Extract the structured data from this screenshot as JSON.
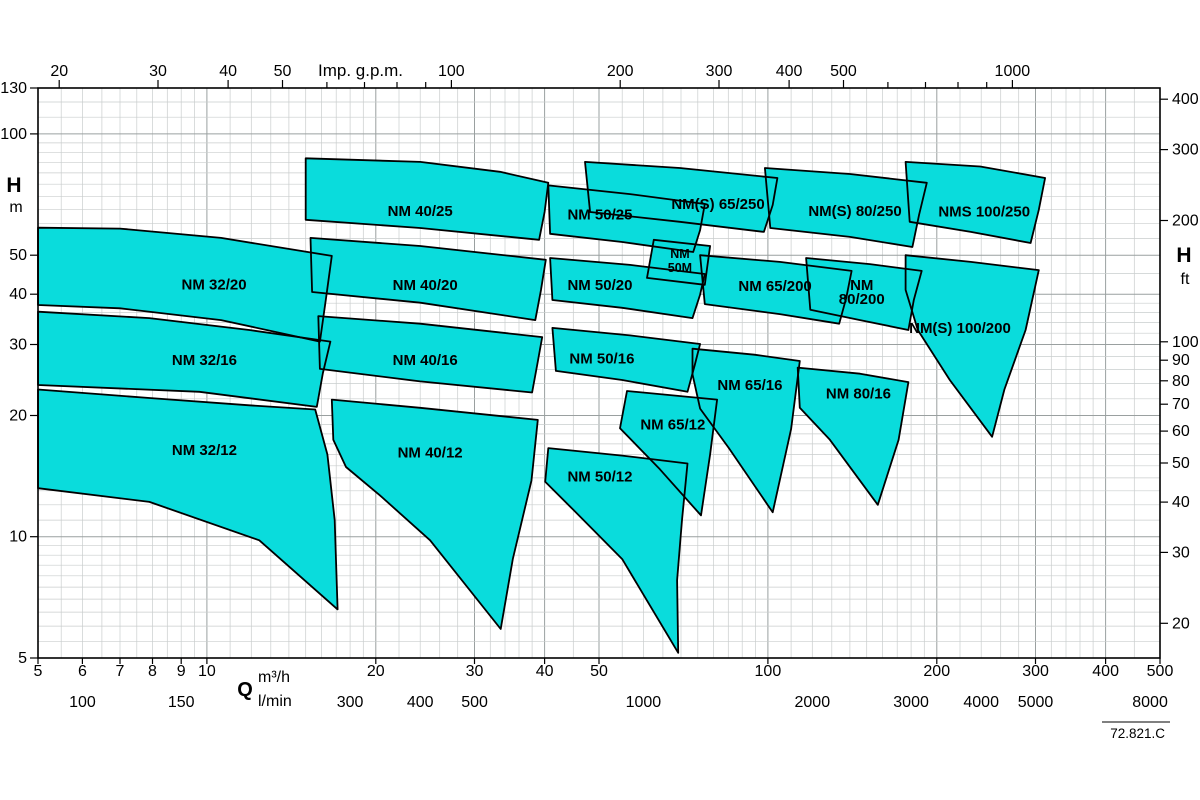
{
  "meta": {
    "doc_code": "72.821.C"
  },
  "colors": {
    "background": "#ffffff",
    "region_fill": "#0adcdc",
    "region_stroke": "#000000",
    "grid_minor": "#c9cdcd",
    "grid_major": "#9aa0a0",
    "axis": "#000000"
  },
  "axes": {
    "top": {
      "title": "Imp. g.p.m.",
      "ticks": [
        20,
        30,
        40,
        50,
        100,
        200,
        300,
        400,
        500,
        1000
      ]
    },
    "bottom": {
      "symbol": "Q",
      "unit_primary": "m³/h",
      "unit_secondary": "l/min",
      "m3h_ticks": [
        5,
        6,
        7,
        8,
        9,
        10,
        20,
        30,
        40,
        50,
        100,
        200,
        300,
        400,
        500
      ],
      "lmin_ticks": [
        100,
        150,
        300,
        400,
        500,
        1000,
        2000,
        3000,
        4000,
        5000,
        8000
      ]
    },
    "left": {
      "title": "H",
      "unit": "m",
      "ticks": [
        130,
        100,
        50,
        40,
        30,
        20,
        10,
        5
      ]
    },
    "right": {
      "title": "H",
      "unit": "ft",
      "ticks": [
        400,
        300,
        200,
        100,
        90,
        80,
        70,
        60,
        50,
        40,
        30,
        20
      ]
    }
  },
  "chart_data": {
    "type": "area",
    "title": "",
    "x_axis": {
      "label": "Q",
      "units": [
        "m³/h",
        "l/min",
        "Imp. g.p.m."
      ],
      "scale": "log",
      "min": 5,
      "max": 500,
      "major_gridlines": [
        5,
        10,
        20,
        30,
        40,
        50,
        100,
        200,
        300,
        400,
        500
      ]
    },
    "y_axis": {
      "label": "H",
      "units": [
        "m",
        "ft"
      ],
      "scale": "log",
      "min": 5,
      "max": 130,
      "major_gridlines": [
        5,
        10,
        20,
        30,
        40,
        50,
        100
      ]
    },
    "regions": [
      {
        "id": "nm-32-20",
        "label_lines": [
          "NM 32/20"
        ],
        "label_pos": [
          10.3,
          42.3
        ],
        "points_q_h": [
          [
            5,
            58.5
          ],
          [
            7,
            58.2
          ],
          [
            10.6,
            55.2
          ],
          [
            16.7,
            49.8
          ],
          [
            16.3,
            38.9
          ],
          [
            15.9,
            30.5
          ],
          [
            10.6,
            34.5
          ],
          [
            7,
            36.9
          ],
          [
            5,
            37.6
          ]
        ]
      },
      {
        "id": "nm-32-16",
        "label_lines": [
          "NM 32/16"
        ],
        "label_pos": [
          9.9,
          27.5
        ],
        "points_q_h": [
          [
            5,
            36.2
          ],
          [
            7.9,
            34.9
          ],
          [
            11.9,
            32.6
          ],
          [
            16.6,
            30.5
          ],
          [
            16.1,
            25.5
          ],
          [
            15.7,
            21
          ],
          [
            9.7,
            22.9
          ],
          [
            5,
            23.8
          ]
        ]
      },
      {
        "id": "nm-32-12",
        "label_lines": [
          "NM 32/12"
        ],
        "label_pos": [
          9.9,
          16.4
        ],
        "points_q_h": [
          [
            5,
            23.2
          ],
          [
            7.9,
            22.1
          ],
          [
            11.9,
            21.2
          ],
          [
            15.6,
            20.7
          ],
          [
            16.4,
            16
          ],
          [
            16.9,
            11
          ],
          [
            17.1,
            6.6
          ],
          [
            12.4,
            9.8
          ],
          [
            7.9,
            12.2
          ],
          [
            5,
            13.2
          ]
        ]
      },
      {
        "id": "nm-40-25",
        "label_lines": [
          "NM 40/25"
        ],
        "label_pos": [
          24,
          64.4
        ],
        "points_q_h": [
          [
            15,
            87
          ],
          [
            24,
            85.2
          ],
          [
            33.3,
            80.5
          ],
          [
            40.6,
            75.6
          ],
          [
            40,
            64
          ],
          [
            39.1,
            54.6
          ],
          [
            24,
            58.4
          ],
          [
            15,
            61.2
          ]
        ]
      },
      {
        "id": "nm-40-20",
        "label_lines": [
          "NM 40/20"
        ],
        "label_pos": [
          24.5,
          42.2
        ],
        "points_q_h": [
          [
            15.3,
            55.2
          ],
          [
            24,
            52.7
          ],
          [
            40.2,
            48.7
          ],
          [
            39.4,
            41
          ],
          [
            38.5,
            34.5
          ],
          [
            24,
            38.1
          ],
          [
            15.4,
            40.5
          ]
        ]
      },
      {
        "id": "nm-40-16",
        "label_lines": [
          "NM 40/16"
        ],
        "label_pos": [
          24.5,
          27.5
        ],
        "points_q_h": [
          [
            15.8,
            35.3
          ],
          [
            24,
            33.8
          ],
          [
            39.6,
            31.3
          ],
          [
            38.8,
            26.7
          ],
          [
            38,
            22.8
          ],
          [
            24,
            24.3
          ],
          [
            15.9,
            26.1
          ]
        ]
      },
      {
        "id": "nm-40-12",
        "label_lines": [
          "NM 40/12"
        ],
        "label_pos": [
          25,
          16.2
        ],
        "points_q_h": [
          [
            16.7,
            21.9
          ],
          [
            24,
            20.9
          ],
          [
            38.9,
            19.5
          ],
          [
            37.9,
            13.8
          ],
          [
            35.1,
            8.8
          ],
          [
            33.4,
            5.9
          ],
          [
            25,
            9.8
          ],
          [
            20.3,
            12.7
          ],
          [
            17.7,
            14.9
          ],
          [
            16.8,
            17.4
          ]
        ]
      },
      {
        "id": "nm-50-25",
        "label_lines": [
          "NM 50/25"
        ],
        "label_pos": [
          50.2,
          63
        ],
        "points_q_h": [
          [
            40.6,
            74.5
          ],
          [
            56.8,
            70.9
          ],
          [
            77.2,
            67
          ],
          [
            75.7,
            57.7
          ],
          [
            73.6,
            50.9
          ],
          [
            55,
            53.9
          ],
          [
            40.9,
            56.5
          ]
        ]
      },
      {
        "id": "nm-50m",
        "label_lines": [
          "NM",
          "50M"
        ],
        "small_label": true,
        "label_pos": [
          69.7,
          48.7
        ],
        "points_q_h": [
          [
            62.6,
            54.6
          ],
          [
            78.9,
            52.7
          ],
          [
            77.2,
            42.2
          ],
          [
            60.9,
            43.9
          ]
        ]
      },
      {
        "id": "nm-50-20",
        "label_lines": [
          "NM 50/20"
        ],
        "label_pos": [
          50.2,
          42.2
        ],
        "points_q_h": [
          [
            40.9,
            49.2
          ],
          [
            56.8,
            47.3
          ],
          [
            77.2,
            44.9
          ],
          [
            75.7,
            39.9
          ],
          [
            73.4,
            34.9
          ],
          [
            55,
            37
          ],
          [
            41.3,
            38.7
          ]
        ]
      },
      {
        "id": "nm-50-16",
        "label_lines": [
          "NM 50/16"
        ],
        "label_pos": [
          50.6,
          27.7
        ],
        "points_q_h": [
          [
            41.3,
            33
          ],
          [
            56.8,
            31.6
          ],
          [
            75.7,
            30.1
          ],
          [
            74.1,
            26.7
          ],
          [
            71.9,
            22.9
          ],
          [
            55,
            24.5
          ],
          [
            41.9,
            25.8
          ]
        ]
      },
      {
        "id": "nm-50-12",
        "label_lines": [
          "NM 50/12"
        ],
        "label_pos": [
          50.2,
          14.1
        ],
        "points_q_h": [
          [
            40.6,
            16.6
          ],
          [
            55,
            15.9
          ],
          [
            71.9,
            15.2
          ],
          [
            70.3,
            11
          ],
          [
            68.9,
            7.8
          ],
          [
            69.2,
            5.15
          ],
          [
            55,
            8.8
          ],
          [
            44.9,
            11.7
          ],
          [
            40.1,
            13.7
          ]
        ]
      },
      {
        "id": "nms-65-250",
        "label_lines": [
          "NM(S) 65/250"
        ],
        "label_pos": [
          81.5,
          67
        ],
        "points_q_h": [
          [
            47.2,
            85.2
          ],
          [
            69.7,
            82.3
          ],
          [
            104,
            77.7
          ],
          [
            102,
            66.6
          ],
          [
            98.4,
            57.1
          ],
          [
            69.7,
            60.5
          ],
          [
            48.2,
            64
          ]
        ]
      },
      {
        "id": "nm-65-200",
        "label_lines": [
          "NM 65/200"
        ],
        "label_pos": [
          103,
          41.9
        ],
        "points_q_h": [
          [
            75.7,
            50
          ],
          [
            105,
            48.1
          ],
          [
            141,
            45.7
          ],
          [
            138,
            39.2
          ],
          [
            134,
            33.8
          ],
          [
            105,
            35.7
          ],
          [
            77.2,
            37.8
          ]
        ]
      },
      {
        "id": "nm-65-16",
        "label_lines": [
          "NM 65/16"
        ],
        "label_pos": [
          92.9,
          23.8
        ],
        "points_q_h": [
          [
            73.4,
            29.3
          ],
          [
            94.6,
            28.3
          ],
          [
            114,
            27.3
          ],
          [
            110,
            18.5
          ],
          [
            102,
            11.5
          ],
          [
            85.2,
            16.6
          ],
          [
            75.7,
            20.8
          ],
          [
            73.4,
            25.3
          ]
        ]
      },
      {
        "id": "nm-65-12",
        "label_lines": [
          "NM 65/12"
        ],
        "label_pos": [
          67.7,
          19
        ],
        "points_q_h": [
          [
            56.1,
            23
          ],
          [
            81.2,
            21.9
          ],
          [
            78.9,
            16
          ],
          [
            76,
            11.3
          ],
          [
            64.2,
            14.7
          ],
          [
            54.5,
            18.6
          ]
        ]
      },
      {
        "id": "nms-80-250",
        "label_lines": [
          "NM(S) 80/250"
        ],
        "label_pos": [
          143,
          64.4
        ],
        "points_q_h": [
          [
            98.8,
            82.3
          ],
          [
            140,
            79.5
          ],
          [
            192,
            75.6
          ],
          [
            186,
            63
          ],
          [
            181,
            52.4
          ],
          [
            140,
            55.5
          ],
          [
            101,
            58.4
          ]
        ]
      },
      {
        "id": "nm-80-200",
        "label_lines": [
          "NM",
          "80/200"
        ],
        "label_pos": [
          147,
          40.5
        ],
        "points_q_h": [
          [
            117,
            49.2
          ],
          [
            152,
            47.5
          ],
          [
            188,
            45.7
          ],
          [
            182,
            38.7
          ],
          [
            178,
            32.6
          ],
          [
            146,
            34.5
          ],
          [
            119,
            36.6
          ]
        ]
      },
      {
        "id": "nm-80-16",
        "label_lines": [
          "NM 80/16"
        ],
        "label_pos": [
          145,
          22.7
        ],
        "points_q_h": [
          [
            113,
            26.3
          ],
          [
            146,
            25.4
          ],
          [
            178,
            24.2
          ],
          [
            171,
            17.4
          ],
          [
            157,
            12
          ],
          [
            129,
            17.4
          ],
          [
            114,
            20.9
          ]
        ]
      },
      {
        "id": "nms-100-250",
        "label_lines": [
          "NMS 100/250"
        ],
        "label_pos": [
          243,
          64.1
        ],
        "points_q_h": [
          [
            176,
            85.2
          ],
          [
            239,
            83
          ],
          [
            312,
            77.7
          ],
          [
            304,
            64.8
          ],
          [
            294,
            53.6
          ],
          [
            230,
            57.1
          ],
          [
            179,
            60.5
          ]
        ]
      },
      {
        "id": "nms-100-200",
        "label_lines": [
          "NM(S) 100/200"
        ],
        "label_pos": [
          220,
          33
        ],
        "points_q_h": [
          [
            176,
            50
          ],
          [
            230,
            48.1
          ],
          [
            304,
            45.9
          ],
          [
            288,
            32.6
          ],
          [
            264,
            23.2
          ],
          [
            251,
            17.7
          ],
          [
            211,
            24.5
          ],
          [
            185,
            32.6
          ],
          [
            176,
            41
          ]
        ]
      }
    ]
  }
}
